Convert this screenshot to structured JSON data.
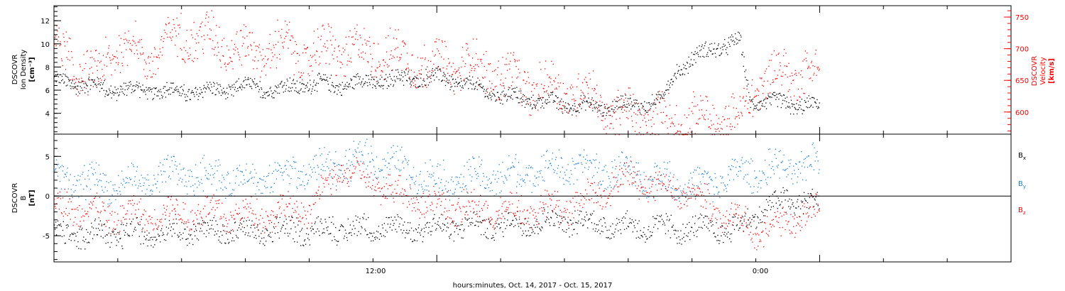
{
  "xlabel": "hours:minutes, Oct. 14, 2017 - Oct. 15, 2017",
  "x_tick_labels": [
    "12:00",
    "0:00"
  ],
  "colors": {
    "black": "#000000",
    "red": "#ff0000",
    "blue": "#1e7fd6",
    "grid": "#000000"
  },
  "chart_data": [
    {
      "type": "scatter",
      "x_range_hours": [
        0,
        30
      ],
      "data_end_hours": 24,
      "ylabel_left": [
        "DSCOVR",
        "Ion Density",
        "[cm⁻³]"
      ],
      "ylabel_right": [
        "DSCOVR",
        "Velocity",
        "[km/s]"
      ],
      "ylim_left": [
        2.2,
        13.3
      ],
      "ylim_right": [
        565,
        768
      ],
      "left_ticks": [
        4,
        6,
        8,
        10,
        12
      ],
      "right_ticks": [
        600,
        650,
        700,
        750
      ],
      "series": [
        {
          "name": "",
          "axis": "left",
          "color": "black",
          "knots": [
            [
              0,
              6.8
            ],
            [
              1,
              6.5
            ],
            [
              2,
              6.0
            ],
            [
              3,
              6.1
            ],
            [
              4,
              5.9
            ],
            [
              5,
              6.0
            ],
            [
              6,
              6.3
            ],
            [
              7,
              6.1
            ],
            [
              8,
              6.6
            ],
            [
              9,
              6.5
            ],
            [
              10,
              6.8
            ],
            [
              11,
              7.0
            ],
            [
              12,
              7.2
            ],
            [
              13,
              6.4
            ],
            [
              14,
              5.6
            ],
            [
              15,
              5.2
            ],
            [
              16,
              4.8
            ],
            [
              17,
              4.6
            ],
            [
              18,
              4.8
            ],
            [
              19,
              5.0
            ],
            [
              19.5,
              7.8
            ],
            [
              20.5,
              9.5
            ],
            [
              21.5,
              10.2
            ],
            [
              21.8,
              5.2
            ],
            [
              23,
              4.8
            ],
            [
              24,
              4.6
            ]
          ],
          "spread": 1.1
        },
        {
          "name": "",
          "axis": "right",
          "color": "red",
          "knots": [
            [
              0,
              705
            ],
            [
              1.2,
              650
            ],
            [
              2,
              710
            ],
            [
              3,
              690
            ],
            [
              4,
              725
            ],
            [
              5,
              715
            ],
            [
              6,
              695
            ],
            [
              7,
              705
            ],
            [
              8,
              690
            ],
            [
              9,
              700
            ],
            [
              10,
              695
            ],
            [
              11,
              685
            ],
            [
              12,
              672
            ],
            [
              13,
              675
            ],
            [
              14,
              660
            ],
            [
              15,
              640
            ],
            [
              16,
              635
            ],
            [
              17,
              625
            ],
            [
              17.5,
              595
            ],
            [
              18.5,
              595
            ],
            [
              19.5,
              590
            ],
            [
              20.5,
              587
            ],
            [
              21.5,
              585
            ],
            [
              22,
              645
            ],
            [
              23,
              665
            ],
            [
              24,
              660
            ]
          ],
          "spread": 55
        }
      ]
    },
    {
      "type": "scatter",
      "x_range_hours": [
        0,
        30
      ],
      "data_end_hours": 24,
      "ylabel_left": [
        "DSCOVR",
        "B",
        "[nT]"
      ],
      "ylim": [
        -8.3,
        7.8
      ],
      "left_ticks": [
        -5,
        0,
        5
      ],
      "zero_line": true,
      "legend": {
        "placement": "right",
        "entries": [
          "Bx",
          "By",
          "Bz"
        ]
      },
      "series": [
        {
          "name": "Bx",
          "color": "black",
          "knots": [
            [
              0,
              -4.6
            ],
            [
              2,
              -4.8
            ],
            [
              4,
              -4.2
            ],
            [
              6,
              -4.6
            ],
            [
              8,
              -4.2
            ],
            [
              10,
              -4.0
            ],
            [
              12,
              -3.9
            ],
            [
              14,
              -3.5
            ],
            [
              16,
              -3.2
            ],
            [
              18,
              -3.8
            ],
            [
              20,
              -4.2
            ],
            [
              21.5,
              -4.0
            ],
            [
              22,
              -2.0
            ],
            [
              23,
              -0.5
            ],
            [
              24,
              -1.0
            ]
          ],
          "spread": 2.4
        },
        {
          "name": "By",
          "color": "blue",
          "knots": [
            [
              0,
              2.5
            ],
            [
              2,
              1.5
            ],
            [
              4,
              2.8
            ],
            [
              6,
              2.2
            ],
            [
              8,
              3.2
            ],
            [
              10,
              4.8
            ],
            [
              12,
              2.0
            ],
            [
              14,
              2.5
            ],
            [
              16,
              3.8
            ],
            [
              18,
              3.0
            ],
            [
              20,
              1.2
            ],
            [
              22,
              3.2
            ],
            [
              24,
              4.2
            ]
          ],
          "spread": 3.2
        },
        {
          "name": "Bz",
          "color": "red",
          "knots": [
            [
              0,
              -1.0
            ],
            [
              2,
              -2.5
            ],
            [
              4,
              -2.0
            ],
            [
              6,
              -2.5
            ],
            [
              8,
              -1.5
            ],
            [
              9,
              3.5
            ],
            [
              10,
              1.5
            ],
            [
              12,
              -1.0
            ],
            [
              14,
              -2.0
            ],
            [
              16,
              -1.5
            ],
            [
              18,
              2.5
            ],
            [
              20,
              0.2
            ],
            [
              22,
              -4.5
            ],
            [
              24,
              -2.0
            ]
          ],
          "spread": 3.0
        }
      ]
    }
  ]
}
